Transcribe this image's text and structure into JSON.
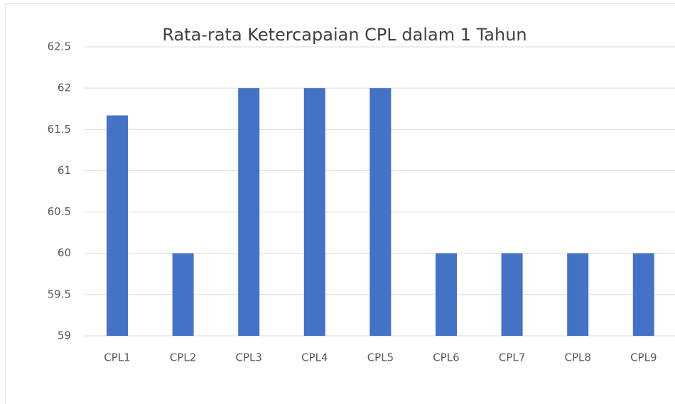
{
  "chart_data": {
    "type": "bar",
    "title": "Rata-rata Ketercapaian CPL dalam 1 Tahun",
    "categories": [
      "CPL1",
      "CPL2",
      "CPL3",
      "CPL4",
      "CPL5",
      "CPL6",
      "CPL7",
      "CPL8",
      "CPL9"
    ],
    "values": [
      61.67,
      60,
      62,
      62,
      62,
      60,
      60,
      60,
      60
    ],
    "color": "#4472c4",
    "ylim": [
      59,
      62.5
    ],
    "yticks": [
      59,
      59.5,
      60,
      60.5,
      61,
      61.5,
      62,
      62.5
    ],
    "grid": true
  }
}
